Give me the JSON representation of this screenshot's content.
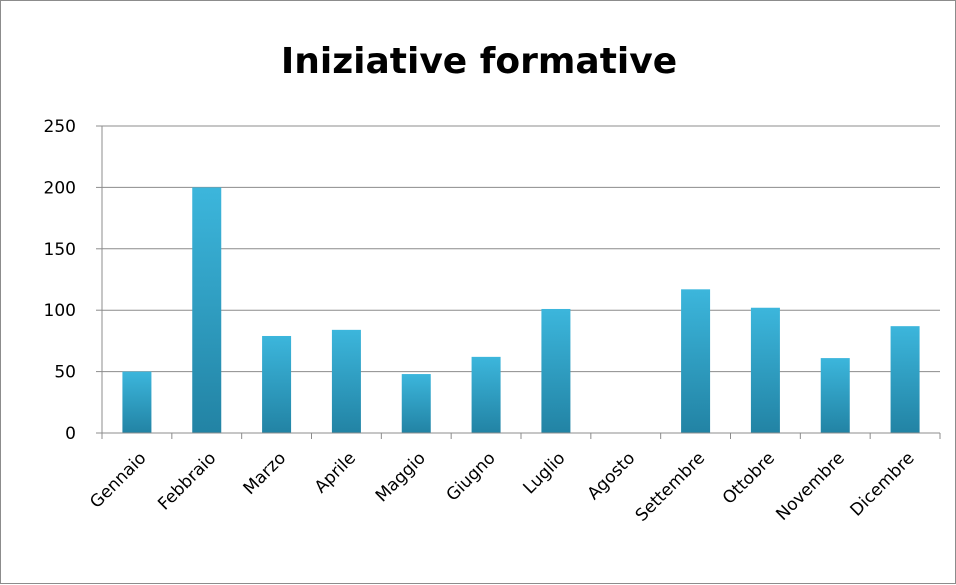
{
  "chart_data": {
    "type": "bar",
    "title": "Iniziative formative",
    "categories": [
      "Gennaio",
      "Febbraio",
      "Marzo",
      "Aprile",
      "Maggio",
      "Giugno",
      "Luglio",
      "Agosto",
      "Settembre",
      "Ottobre",
      "Novembre",
      "Dicembre"
    ],
    "values": [
      50,
      200,
      79,
      84,
      48,
      62,
      101,
      0,
      117,
      102,
      61,
      87
    ],
    "xlabel": "",
    "ylabel": "",
    "ylim": [
      0,
      250
    ],
    "yticks": [
      0,
      50,
      100,
      150,
      200,
      250
    ],
    "grid": true,
    "legend": "none",
    "colors": {
      "bar_light": "#3cb6dc",
      "bar_dark": "#2283a4",
      "grid": "#8c8c8c",
      "axis": "#8c8c8c"
    }
  }
}
